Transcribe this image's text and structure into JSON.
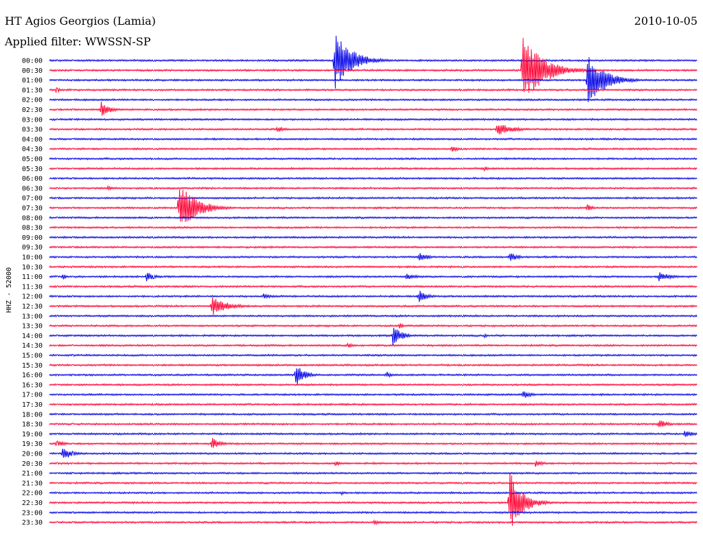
{
  "header": {
    "station": "HT Agios Georgios (Lamia)",
    "filter": "Applied filter: WWSSN-SP",
    "date": "2010-10-05"
  },
  "colors": {
    "blue": "#0000e6",
    "red": "#ff0033"
  },
  "chart_data": {
    "type": "line",
    "ylabel": "HHZ - 52000",
    "rows": [
      "00:00",
      "00:30",
      "01:00",
      "01:30",
      "02:00",
      "02:30",
      "03:00",
      "03:30",
      "04:00",
      "04:30",
      "05:00",
      "05:30",
      "06:00",
      "06:30",
      "07:00",
      "07:30",
      "08:00",
      "08:30",
      "09:00",
      "09:30",
      "10:00",
      "10:30",
      "11:00",
      "11:30",
      "12:00",
      "12:30",
      "13:00",
      "13:30",
      "14:00",
      "14:30",
      "15:00",
      "15:30",
      "16:00",
      "16:30",
      "17:00",
      "17:30",
      "18:00",
      "18:30",
      "19:00",
      "19:30",
      "20:00",
      "20:30",
      "21:00",
      "21:30",
      "22:00",
      "22:30",
      "23:00",
      "23:30"
    ],
    "row_colors": [
      "blue",
      "red"
    ],
    "minutes_per_row": 30,
    "events": [
      {
        "row": 0,
        "t": 0.44,
        "amp": 45,
        "dur": 0.04
      },
      {
        "row": 3,
        "t": 0.01,
        "amp": 5,
        "dur": 0.01
      },
      {
        "row": 1,
        "t": 0.73,
        "amp": 50,
        "dur": 0.05
      },
      {
        "row": 2,
        "t": 0.83,
        "amp": 40,
        "dur": 0.04
      },
      {
        "row": 5,
        "t": 0.08,
        "amp": 12,
        "dur": 0.02
      },
      {
        "row": 7,
        "t": 0.35,
        "amp": 5,
        "dur": 0.02
      },
      {
        "row": 7,
        "t": 0.69,
        "amp": 10,
        "dur": 0.04
      },
      {
        "row": 9,
        "t": 0.62,
        "amp": 5,
        "dur": 0.02
      },
      {
        "row": 11,
        "t": 0.67,
        "amp": 5,
        "dur": 0.01
      },
      {
        "row": 13,
        "t": 0.09,
        "amp": 5,
        "dur": 0.01
      },
      {
        "row": 15,
        "t": 0.2,
        "amp": 38,
        "dur": 0.04
      },
      {
        "row": 15,
        "t": 0.83,
        "amp": 8,
        "dur": 0.01
      },
      {
        "row": 20,
        "t": 0.57,
        "amp": 8,
        "dur": 0.02
      },
      {
        "row": 20,
        "t": 0.71,
        "amp": 8,
        "dur": 0.02
      },
      {
        "row": 22,
        "t": 0.02,
        "amp": 6,
        "dur": 0.01
      },
      {
        "row": 22,
        "t": 0.15,
        "amp": 7,
        "dur": 0.02
      },
      {
        "row": 22,
        "t": 0.55,
        "amp": 5,
        "dur": 0.03
      },
      {
        "row": 22,
        "t": 0.94,
        "amp": 7,
        "dur": 0.03
      },
      {
        "row": 24,
        "t": 0.57,
        "amp": 10,
        "dur": 0.02
      },
      {
        "row": 24,
        "t": 0.33,
        "amp": 5,
        "dur": 0.02
      },
      {
        "row": 25,
        "t": 0.25,
        "amp": 14,
        "dur": 0.04
      },
      {
        "row": 28,
        "t": 0.53,
        "amp": 16,
        "dur": 0.02
      },
      {
        "row": 27,
        "t": 0.54,
        "amp": 6,
        "dur": 0.01
      },
      {
        "row": 28,
        "t": 0.67,
        "amp": 4,
        "dur": 0.01
      },
      {
        "row": 29,
        "t": 0.46,
        "amp": 4,
        "dur": 0.02
      },
      {
        "row": 32,
        "t": 0.38,
        "amp": 18,
        "dur": 0.02
      },
      {
        "row": 32,
        "t": 0.52,
        "amp": 6,
        "dur": 0.01
      },
      {
        "row": 34,
        "t": 0.73,
        "amp": 7,
        "dur": 0.02
      },
      {
        "row": 37,
        "t": 0.94,
        "amp": 8,
        "dur": 0.02
      },
      {
        "row": 38,
        "t": 0.98,
        "amp": 6,
        "dur": 0.02
      },
      {
        "row": 39,
        "t": 0.01,
        "amp": 6,
        "dur": 0.02
      },
      {
        "row": 39,
        "t": 0.25,
        "amp": 10,
        "dur": 0.02
      },
      {
        "row": 40,
        "t": 0.02,
        "amp": 12,
        "dur": 0.02
      },
      {
        "row": 41,
        "t": 0.44,
        "amp": 4,
        "dur": 0.02
      },
      {
        "row": 41,
        "t": 0.75,
        "amp": 5,
        "dur": 0.02
      },
      {
        "row": 44,
        "t": 0.45,
        "amp": 4,
        "dur": 0.01
      },
      {
        "row": 45,
        "t": 0.71,
        "amp": 48,
        "dur": 0.03
      },
      {
        "row": 47,
        "t": 0.5,
        "amp": 4,
        "dur": 0.02
      }
    ]
  }
}
